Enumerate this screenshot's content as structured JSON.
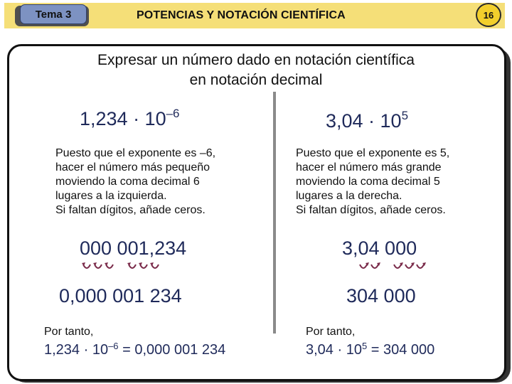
{
  "header": {
    "tema_label": "Tema 3",
    "title": "POTENCIAS Y NOTACIÓN CIENTÍFICA",
    "page_number": "16"
  },
  "heading": {
    "line1": "Expresar un número dado en notación científica",
    "line2": "en notación decimal"
  },
  "left": {
    "expression": {
      "mantissa": "1,234 · 10",
      "exponent": "–6"
    },
    "explanation": "Puesto que el exponente es –6,\nhacer el número más pequeño\nmoviendo la coma decimal 6\nlugares a la izquierda.\nSi faltan dígitos, añade ceros.",
    "padded": "000 001,234",
    "decimal": "0,000 001 234",
    "conclusion_label": "Por tanto,",
    "result": {
      "base": "1,234 · 10",
      "exponent": "–6",
      "tail": " = 0,000 001 234"
    }
  },
  "right": {
    "expression": {
      "mantissa": "3,04 · 10",
      "exponent": "5"
    },
    "explanation": "Puesto que el exponente es 5,\nhacer el número más grande\nmoviendo la coma decimal 5\nlugares a la derecha.\nSi faltan dígitos, añade ceros.",
    "padded": "3,04 000",
    "decimal": "304 000",
    "conclusion_label": "Por tanto,",
    "result": {
      "base": "3,04 · 10",
      "exponent": "5",
      "tail": " = 304 000"
    }
  },
  "colors": {
    "header_bar": "#f5df78",
    "tema_tab": "#7d92c2",
    "page_badge": "#f2cf2c",
    "number_text": "#1f2a5a",
    "arrow": "#7a2b4a"
  }
}
